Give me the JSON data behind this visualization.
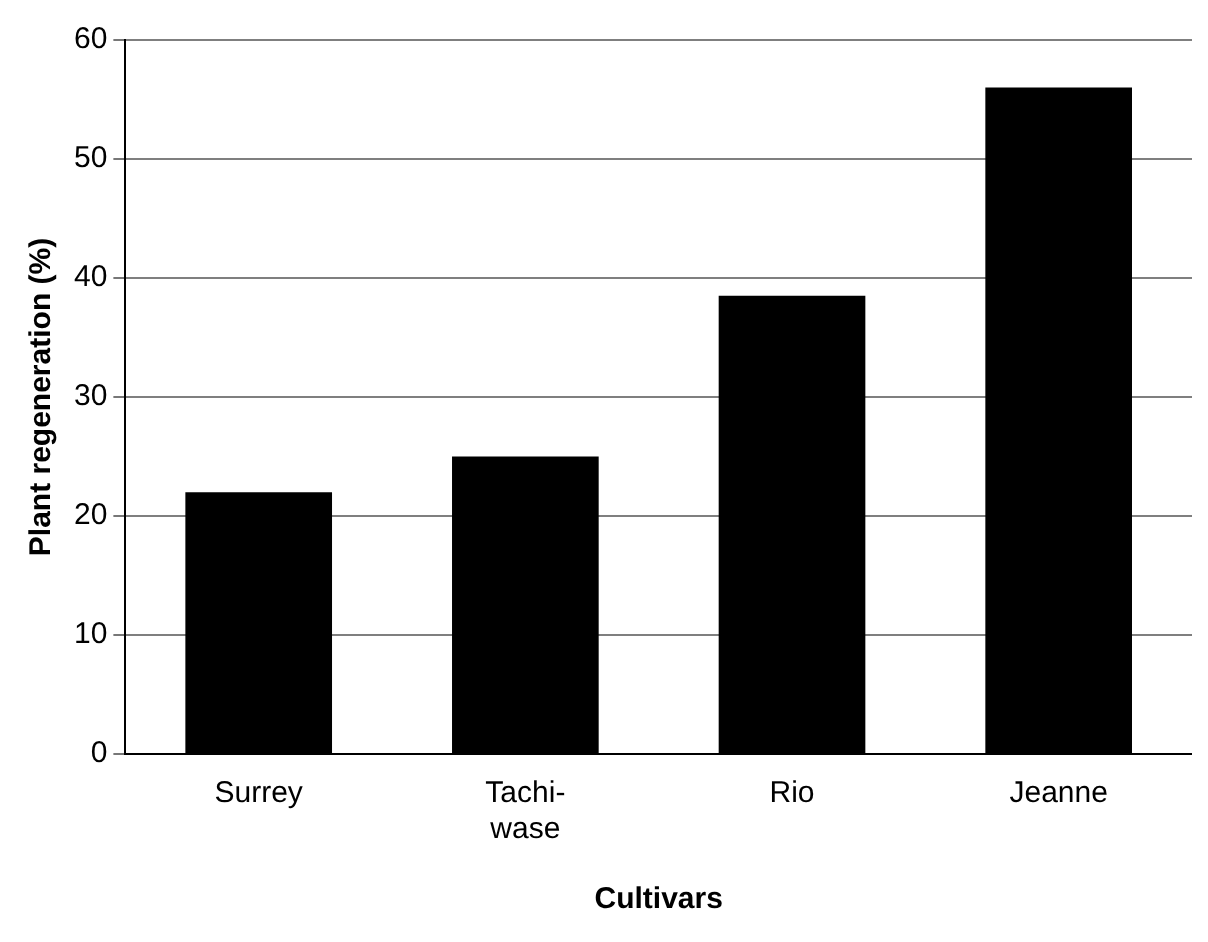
{
  "chart_data": {
    "type": "bar",
    "xlabel": "Cultivars",
    "ylabel": "Plant regeneration (%)",
    "categories": [
      "Surrey",
      "Tachi-\nwase",
      "Rio",
      "Jeanne"
    ],
    "values": [
      22,
      25,
      38.5,
      56
    ],
    "color": "#000000",
    "ylim": [
      0,
      60
    ],
    "yticks": [
      0,
      10,
      20,
      30,
      40,
      50,
      60
    ],
    "grid": "y"
  }
}
